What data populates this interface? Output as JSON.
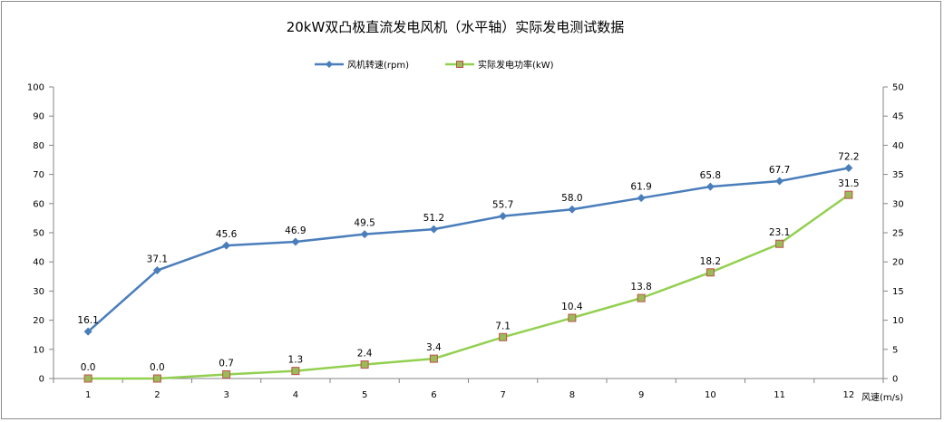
{
  "chart_data": {
    "type": "line",
    "title": "20kW双凸极直流发电风机（水平轴）实际发电测试数据",
    "xlabel": "风速(m/s)",
    "categories": [
      "1",
      "2",
      "3",
      "4",
      "5",
      "6",
      "7",
      "8",
      "9",
      "10",
      "11",
      "12"
    ],
    "y_left": {
      "min": 0,
      "max": 100,
      "step": 10,
      "ticks": [
        "0",
        "10",
        "20",
        "30",
        "40",
        "50",
        "60",
        "70",
        "80",
        "90",
        "100"
      ]
    },
    "y_right": {
      "min": 0,
      "max": 50,
      "step": 5,
      "ticks": [
        "0",
        "5",
        "10",
        "15",
        "20",
        "25",
        "30",
        "35",
        "40",
        "45",
        "50"
      ]
    },
    "grid": false,
    "legend_position": "top-center",
    "series": [
      {
        "name": "风机转速(rpm)",
        "axis": "left",
        "color": "#4a7ebb",
        "marker": "diamond",
        "values": [
          16.1,
          37.1,
          45.6,
          46.9,
          49.5,
          51.2,
          55.7,
          58.0,
          61.9,
          65.8,
          67.7,
          72.2
        ],
        "labels": [
          "16.1",
          "37.1",
          "45.6",
          "46.9",
          "49.5",
          "51.2",
          "55.7",
          "58.0",
          "61.9",
          "65.8",
          "67.7",
          "72.2"
        ]
      },
      {
        "name": "实际发电功率(kW)",
        "axis": "right",
        "color": "#92d050",
        "marker_fill": "#9bbb59",
        "marker_edge": "#c0504d",
        "marker": "square",
        "values": [
          0.0,
          0.0,
          0.7,
          1.3,
          2.4,
          3.4,
          7.1,
          10.4,
          13.8,
          18.2,
          23.1,
          31.5
        ],
        "labels": [
          "0.0",
          "0.0",
          "0.7",
          "1.3",
          "2.4",
          "3.4",
          "7.1",
          "10.4",
          "13.8",
          "18.2",
          "23.1",
          "31.5"
        ]
      }
    ]
  }
}
